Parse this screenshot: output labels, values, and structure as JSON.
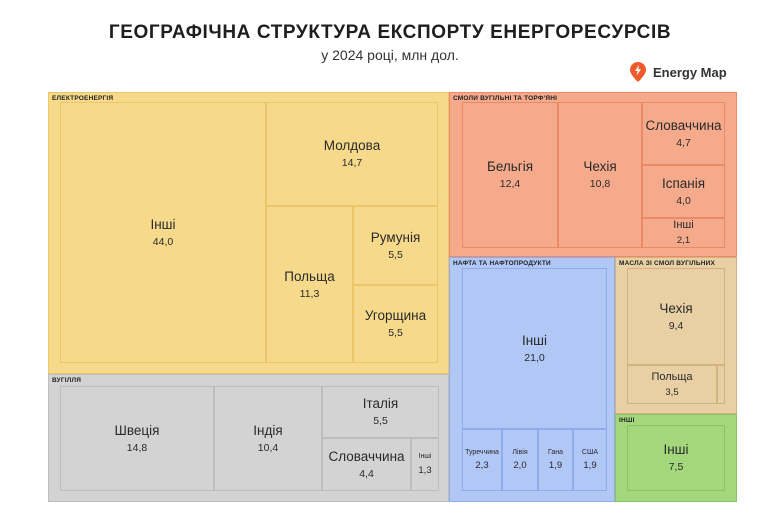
{
  "header": {
    "title": "ГЕОГРАФІЧНА СТРУКТУРА ЕКСПОРТУ ЕНЕРГОРЕСУРСІВ",
    "subtitle": "у 2024 році, млн дол."
  },
  "brand": {
    "name": "Energy Map",
    "icon": "lightning-pin-icon",
    "color": "#f05a2a"
  },
  "chart_data": {
    "type": "treemap",
    "groups": [
      {
        "name": "ЕЛЕКТРОЕНЕРГІЯ",
        "color": "#f6d98a",
        "border": "#ebc76a",
        "items": [
          {
            "name": "Інші",
            "value": "44,0"
          },
          {
            "name": "Молдова",
            "value": "14,7"
          },
          {
            "name": "Польща",
            "value": "11,3"
          },
          {
            "name": "Румунія",
            "value": "5,5"
          },
          {
            "name": "Угорщина",
            "value": "5,5"
          }
        ]
      },
      {
        "name": "ВУГІЛЛЯ",
        "color": "#d3d3d3",
        "border": "#bdbdbd",
        "items": [
          {
            "name": "Швеція",
            "value": "14,8"
          },
          {
            "name": "Індія",
            "value": "10,4"
          },
          {
            "name": "Італія",
            "value": "5,5"
          },
          {
            "name": "Словаччина",
            "value": "4,4"
          },
          {
            "name": "Інші",
            "value": "1,3"
          }
        ]
      },
      {
        "name": "СМОЛИ ВУГІЛЬНІ ТА ТОРФ'ЯНІ",
        "color": "#f5aa8c",
        "border": "#ec8a66",
        "items": [
          {
            "name": "Бельгія",
            "value": "12,4"
          },
          {
            "name": "Чехія",
            "value": "10,8"
          },
          {
            "name": "Словаччина",
            "value": "4,7"
          },
          {
            "name": "Іспанія",
            "value": "4,0"
          },
          {
            "name": "Інші",
            "value": "2,1"
          }
        ]
      },
      {
        "name": "НАФТА ТА НАФТОПРОДУКТИ",
        "color": "#b1c7f6",
        "border": "#8eabeb",
        "items": [
          {
            "name": "Інші",
            "value": "21,0"
          },
          {
            "name": "Туреччина",
            "value": "2,3"
          },
          {
            "name": "Лівія",
            "value": "2,0"
          },
          {
            "name": "Гана",
            "value": "1,9"
          },
          {
            "name": "США",
            "value": "1,9"
          }
        ]
      },
      {
        "name": "МАСЛА ЗІ СМОЛ ВУГІЛЬНИХ",
        "color": "#e8d0a4",
        "border": "#d2b27e",
        "items": [
          {
            "name": "Чехія",
            "value": "9,4"
          },
          {
            "name": "Польща",
            "value": "3,5"
          },
          {
            "name": "",
            "value": ""
          }
        ]
      },
      {
        "name": "ІНШІ",
        "color": "#a4d77c",
        "border": "#86c65c",
        "items": [
          {
            "name": "Інші",
            "value": "7,5"
          }
        ]
      }
    ]
  }
}
